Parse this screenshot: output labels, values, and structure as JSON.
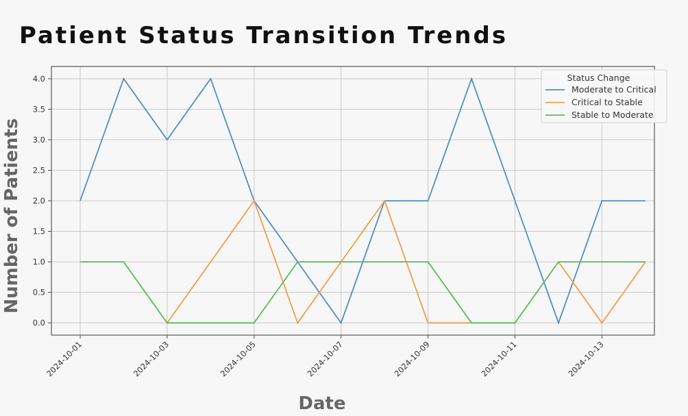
{
  "chart_data": {
    "type": "line",
    "title": "Patient Status Transition Trends",
    "xlabel": "Date",
    "ylabel": "Number of Patients",
    "x": [
      "2024-10-01",
      "2024-10-02",
      "2024-10-03",
      "2024-10-04",
      "2024-10-05",
      "2024-10-06",
      "2024-10-07",
      "2024-10-08",
      "2024-10-09",
      "2024-10-10",
      "2024-10-11",
      "2024-10-12",
      "2024-10-13",
      "2024-10-14"
    ],
    "x_tick_labels": [
      "2024-10-01",
      "2024-10-03",
      "2024-10-05",
      "2024-10-07",
      "2024-10-09",
      "2024-10-11",
      "2024-10-13"
    ],
    "y_ticks": [
      "0.0",
      "0.5",
      "1.0",
      "1.5",
      "2.0",
      "2.5",
      "3.0",
      "3.5",
      "4.0"
    ],
    "ylim": [
      -0.2,
      4.2
    ],
    "grid": true,
    "legend": {
      "title": "Status Change",
      "placement": "top-right"
    },
    "series": [
      {
        "name": "Moderate to Critical",
        "color": "#4f8fc0",
        "values": [
          2,
          4,
          3,
          4,
          2,
          1,
          0,
          2,
          2,
          4,
          2,
          0,
          2,
          2
        ]
      },
      {
        "name": "Critical to Stable",
        "color": "#f39c4a",
        "values": [
          null,
          null,
          0,
          1,
          2,
          0,
          1,
          2,
          0,
          0,
          null,
          1,
          0,
          1
        ]
      },
      {
        "name": "Stable to Moderate",
        "color": "#5cb85c",
        "values": [
          1,
          1,
          0,
          0,
          0,
          1,
          1,
          1,
          1,
          0,
          0,
          1,
          1,
          1
        ]
      }
    ]
  }
}
